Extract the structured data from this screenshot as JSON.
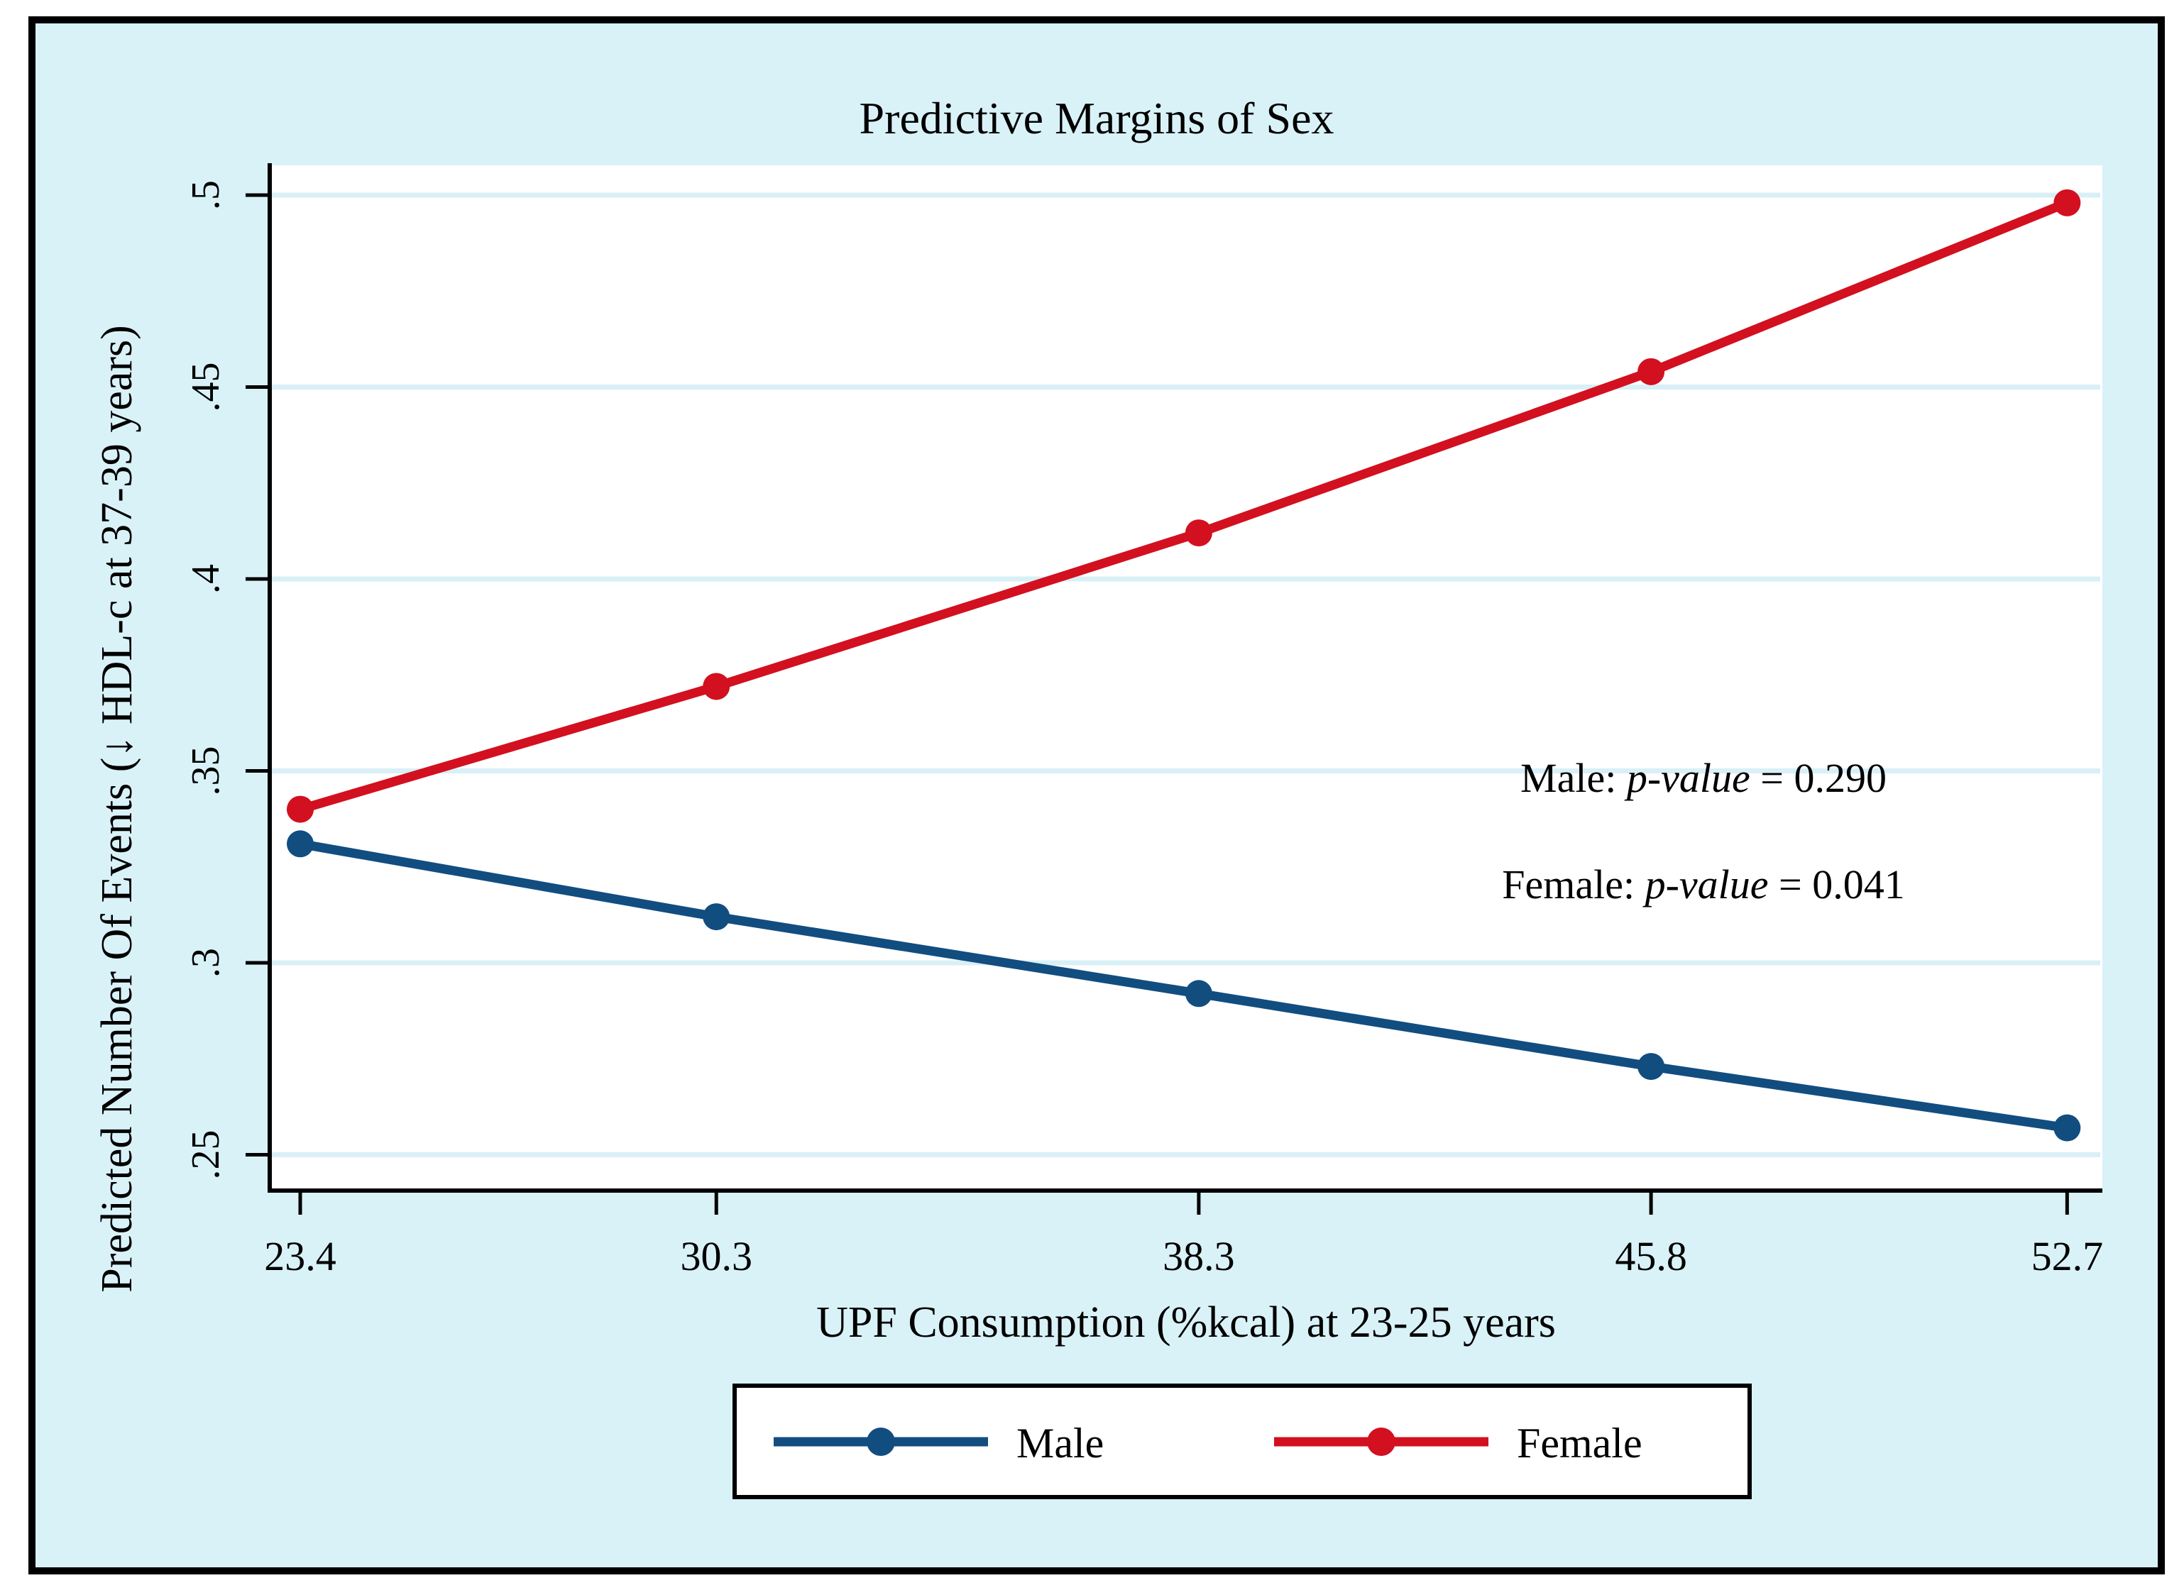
{
  "figure": {
    "page_background": "#ffffff",
    "canvas_background": "#d9f2f8",
    "plot_background": "#ffffff",
    "frame_color": "#000000",
    "grid_color": "#d8f0f6",
    "axis_color": "#000000",
    "text_color": "#000000"
  },
  "chart_data": {
    "type": "line",
    "title": "Predictive Margins of Sex",
    "xlabel": "UPF Consumption (%kcal) at 23-25 years",
    "ylabel": "Predicted Number Of Events (↓ HDL-c at 37-39 years)",
    "x": [
      23.4,
      30.3,
      38.3,
      45.8,
      52.7
    ],
    "xtick_labels": [
      "23.4",
      "30.3",
      "38.3",
      "45.8",
      "52.7"
    ],
    "yticks": [
      0.25,
      0.3,
      0.35,
      0.4,
      0.45,
      0.5
    ],
    "ytick_labels": [
      ".25",
      ".3",
      ".35",
      ".4",
      ".45",
      ".5"
    ],
    "xlim": [
      22.89,
      53.28
    ],
    "ylim": [
      0.241,
      0.508
    ],
    "grid": true,
    "marker": "circle",
    "series": [
      {
        "name": "Male",
        "color": "#124d80",
        "values": [
          0.331,
          0.312,
          0.292,
          0.273,
          0.257
        ]
      },
      {
        "name": "Female",
        "color": "#d2101f",
        "values": [
          0.34,
          0.372,
          0.412,
          0.454,
          0.498
        ]
      }
    ],
    "annotations": [
      {
        "prefix": "Male: ",
        "italic": "p-value",
        "suffix": " = 0.290"
      },
      {
        "prefix": "Female: ",
        "italic": "p-value",
        "suffix": " = 0.041"
      }
    ],
    "legend": {
      "position": "bottom",
      "items": [
        "Male",
        "Female"
      ]
    }
  }
}
